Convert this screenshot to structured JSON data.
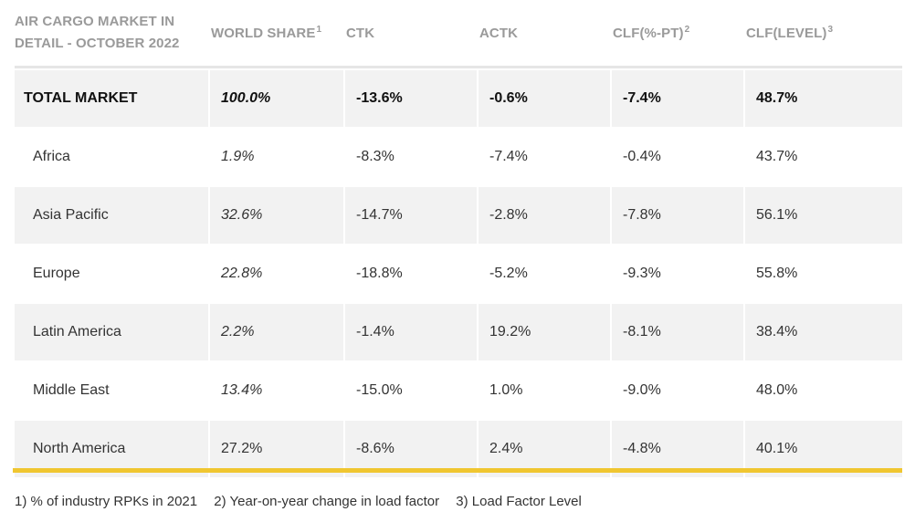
{
  "header": {
    "title_line1": "AIR CARGO MARKET IN",
    "title_line2": "DETAIL - OCTOBER 2022",
    "world_share": "WORLD SHARE",
    "world_share_sup": "1",
    "ctk": "CTK",
    "actk": "ACTK",
    "clf_pt": "CLF(%-PT)",
    "clf_pt_sup": "2",
    "clf_level": "CLF(LEVEL)",
    "clf_level_sup": "3"
  },
  "rows": [
    {
      "region": "TOTAL MARKET",
      "share": "100.0%",
      "ctk": "-13.6%",
      "actk": "-0.6%",
      "clf_pt": "-7.4%",
      "clf_level": "48.7%"
    },
    {
      "region": "Africa",
      "share": "1.9%",
      "ctk": "-8.3%",
      "actk": "-7.4%",
      "clf_pt": "-0.4%",
      "clf_level": "43.7%"
    },
    {
      "region": "Asia Pacific",
      "share": "32.6%",
      "ctk": "-14.7%",
      "actk": "-2.8%",
      "clf_pt": "-7.8%",
      "clf_level": "56.1%"
    },
    {
      "region": "Europe",
      "share": "22.8%",
      "ctk": "-18.8%",
      "actk": "-5.2%",
      "clf_pt": "-9.3%",
      "clf_level": "55.8%"
    },
    {
      "region": "Latin America",
      "share": "2.2%",
      "ctk": "-1.4%",
      "actk": "19.2%",
      "clf_pt": "-8.1%",
      "clf_level": "38.4%"
    },
    {
      "region": "Middle East",
      "share": "13.4%",
      "ctk": "-15.0%",
      "actk": "1.0%",
      "clf_pt": "-9.0%",
      "clf_level": "48.0%"
    },
    {
      "region": "North America",
      "share": "27.2%",
      "ctk": "-8.6%",
      "actk": "2.4%",
      "clf_pt": "-4.8%",
      "clf_level": "40.1%"
    }
  ],
  "footnotes": {
    "note1": "1) % of industry RPKs in 2021",
    "note2": "2) Year-on-year change in load factor",
    "note3": "3) Load Factor Level"
  },
  "colors": {
    "accent_bar": "#f0c630",
    "row_shade": "#f2f2f2",
    "header_text": "#9a9a9a"
  }
}
